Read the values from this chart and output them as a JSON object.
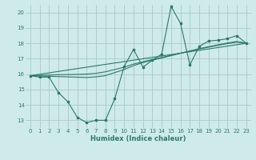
{
  "xlabel": "Humidex (Indice chaleur)",
  "background_color": "#ceeaea",
  "grid_color": "#aecece",
  "line_color": "#2d7a6a",
  "xlim": [
    -0.5,
    23.5
  ],
  "ylim": [
    12.5,
    20.5
  ],
  "xticks": [
    0,
    1,
    2,
    3,
    4,
    5,
    6,
    7,
    8,
    9,
    10,
    11,
    12,
    13,
    14,
    15,
    16,
    17,
    18,
    19,
    20,
    21,
    22,
    23
  ],
  "yticks": [
    13,
    14,
    15,
    16,
    17,
    18,
    19,
    20
  ],
  "series_jagged": {
    "x": [
      0,
      1,
      2,
      3,
      4,
      5,
      6,
      7,
      8,
      9,
      10,
      11,
      12,
      13,
      14,
      15,
      16,
      17,
      18,
      19,
      20,
      21,
      22,
      23
    ],
    "y": [
      15.9,
      15.8,
      15.8,
      14.8,
      14.2,
      13.2,
      12.85,
      13.0,
      13.0,
      14.4,
      16.5,
      17.6,
      16.45,
      16.9,
      17.3,
      20.4,
      19.3,
      16.6,
      17.8,
      18.15,
      18.2,
      18.3,
      18.5,
      18.0
    ]
  },
  "series_smooth1": {
    "x": [
      0,
      1,
      2,
      3,
      4,
      5,
      6,
      7,
      8,
      9,
      10,
      11,
      12,
      13,
      14,
      15,
      16,
      17,
      18,
      19,
      20,
      21,
      22,
      23
    ],
    "y": [
      15.9,
      15.88,
      15.86,
      15.84,
      15.82,
      15.8,
      15.78,
      15.82,
      15.9,
      16.1,
      16.3,
      16.55,
      16.75,
      16.9,
      17.05,
      17.2,
      17.35,
      17.5,
      17.65,
      17.78,
      17.9,
      18.02,
      18.12,
      18.0
    ]
  },
  "series_smooth2": {
    "x": [
      0,
      1,
      2,
      3,
      4,
      5,
      6,
      7,
      8,
      9,
      10,
      11,
      12,
      13,
      14,
      15,
      16,
      17,
      18,
      19,
      20,
      21,
      22,
      23
    ],
    "y": [
      15.9,
      15.92,
      15.94,
      15.96,
      15.97,
      15.98,
      16.0,
      16.05,
      16.15,
      16.3,
      16.45,
      16.65,
      16.8,
      16.95,
      17.08,
      17.22,
      17.36,
      17.5,
      17.63,
      17.75,
      17.87,
      17.98,
      18.08,
      18.0
    ]
  },
  "series_line": {
    "x": [
      0,
      23
    ],
    "y": [
      15.9,
      18.0
    ]
  }
}
